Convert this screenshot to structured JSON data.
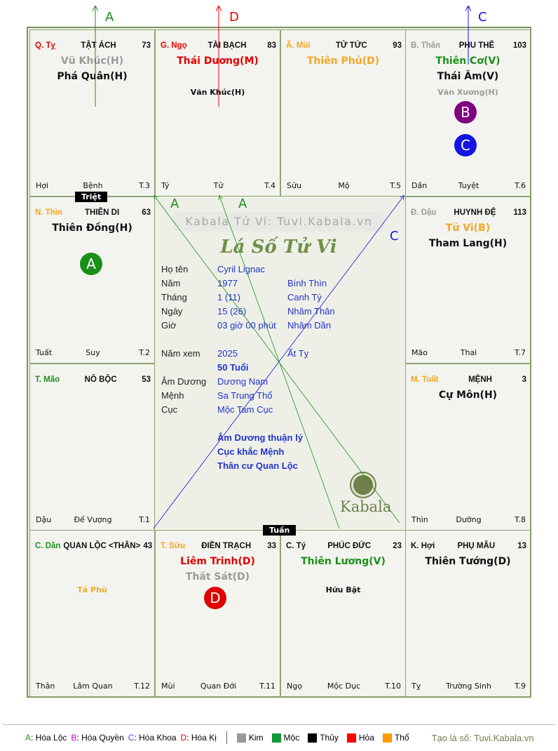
{
  "colors": {
    "red": "#e00000",
    "orange": "#f5a623",
    "green": "#1a8f1a",
    "gray": "#9a9a9a",
    "black": "#111111",
    "blue": "#1515e0",
    "purple": "#800080"
  },
  "cells": [
    {
      "branch": "Q. Tỵ",
      "branch_color": "red",
      "name": "TẬT ÁCH",
      "num": "73",
      "stars": [
        {
          "t": "Vũ Khúc(H)",
          "c": "gray"
        },
        {
          "t": "Phá Quân(H)",
          "c": "black"
        }
      ],
      "minor": [],
      "foot": [
        "Hợi",
        "Bệnh",
        "T.3"
      ]
    },
    {
      "branch": "G. Ngọ",
      "branch_color": "red",
      "name": "TÀI BẠCH",
      "num": "83",
      "stars": [
        {
          "t": "Thái Dương(M)",
          "c": "red"
        }
      ],
      "minor": [
        {
          "t": "Văn Khúc(H)",
          "c": "black"
        }
      ],
      "foot": [
        "Tý",
        "Tử",
        "T.4"
      ]
    },
    {
      "branch": "Ã. Mùi",
      "branch_color": "orange",
      "name": "TỬ TỨC",
      "num": "93",
      "stars": [
        {
          "t": "Thiên Phủ(D)",
          "c": "orange"
        }
      ],
      "minor": [],
      "foot": [
        "Sửu",
        "Mộ",
        "T.5"
      ]
    },
    {
      "branch": "B. Thân",
      "branch_color": "gray",
      "name": "PHU THÊ",
      "num": "103",
      "stars": [
        {
          "t": "Thiên Cơ(V)",
          "c": "green"
        },
        {
          "t": "Thái Âm(V)",
          "c": "black"
        }
      ],
      "minor": [
        {
          "t": "Văn Xương(H)",
          "c": "gray"
        }
      ],
      "foot": [
        "Dần",
        "Tuyệt",
        "T.6"
      ]
    },
    {
      "branch": "N. Thìn",
      "branch_color": "orange",
      "name": "THIÊN DI",
      "num": "63",
      "stars": [
        {
          "t": "Thiên Đồng(H)",
          "c": "black"
        }
      ],
      "minor": [],
      "foot": [
        "Tuất",
        "Suy",
        "T.2"
      ]
    },
    {
      "branch": "Đ. Dậu",
      "branch_color": "gray",
      "name": "HUYNH ĐỆ",
      "num": "113",
      "stars": [
        {
          "t": "Tử Vi(B)",
          "c": "orange"
        },
        {
          "t": "Tham Lang(H)",
          "c": "black"
        }
      ],
      "minor": [],
      "foot": [
        "Mão",
        "Thai",
        "T.7"
      ]
    },
    {
      "branch": "T. Mão",
      "branch_color": "green",
      "name": "NÔ BỘC",
      "num": "53",
      "stars": [],
      "minor": [],
      "foot": [
        "Dậu",
        "Đế Vượng",
        "T.1"
      ]
    },
    {
      "branch": "M. Tuất",
      "branch_color": "orange",
      "name": "MỆNH",
      "num": "3",
      "stars": [
        {
          "t": "Cự Môn(H)",
          "c": "black"
        }
      ],
      "minor": [],
      "foot": [
        "Thìn",
        "Dưỡng",
        "T.8"
      ]
    },
    {
      "branch": "C. Dần",
      "branch_color": "green",
      "name": "QUAN LỘC <THÂN>",
      "num": "43",
      "stars": [],
      "minor": [
        {
          "t": "Tả Phù",
          "c": "orange"
        }
      ],
      "foot": [
        "Thân",
        "Lâm Quan",
        "T.12"
      ]
    },
    {
      "branch": "T. Sửu",
      "branch_color": "orange",
      "name": "ĐIỀN TRẠCH",
      "num": "33",
      "stars": [
        {
          "t": "Liêm Trinh(D)",
          "c": "red"
        },
        {
          "t": "Thất Sát(D)",
          "c": "gray"
        }
      ],
      "minor": [],
      "foot": [
        "Mùi",
        "Quan Đới",
        "T.11"
      ]
    },
    {
      "branch": "C. Tý",
      "branch_color": "black",
      "name": "PHÚC ĐỨC",
      "num": "23",
      "stars": [
        {
          "t": "Thiên Lương(V)",
          "c": "green"
        }
      ],
      "minor": [
        {
          "t": "Hữu Bật",
          "c": "black"
        }
      ],
      "foot": [
        "Ngọ",
        "Mộc Dục",
        "T.10"
      ]
    },
    {
      "branch": "K. Hợi",
      "branch_color": "black",
      "name": "PHỤ MẪU",
      "num": "13",
      "stars": [
        {
          "t": "Thiên Tướng(D)",
          "c": "black"
        }
      ],
      "minor": [],
      "foot": [
        "Tỵ",
        "Trường Sinh",
        "T.9"
      ]
    }
  ],
  "markers": {
    "a": "A",
    "b": "B",
    "c": "C",
    "d": "D"
  },
  "tags": {
    "triet": "Triệt",
    "tuan": "Tuần"
  },
  "center": {
    "watermark": "Kabala Tử Vi: Tuvi.Kabala.vn",
    "title": "Lá Số Tử Vi",
    "logo": "Kabala",
    "rows": [
      {
        "label": "Họ tên",
        "v1": "Cyril Lignac",
        "v2": ""
      },
      {
        "label": "Năm",
        "v1": "1977",
        "v2": "Bính Thìn"
      },
      {
        "label": "Tháng",
        "v1": "1  (11)",
        "v2": "Canh Tý"
      },
      {
        "label": "Ngày",
        "v1": "15  (26)",
        "v2": "Nhâm Thân"
      },
      {
        "label": "Giờ",
        "v1": "03 giờ 00 phút",
        "v2": "Nhâm Dần"
      },
      {
        "label": "Năm xem",
        "v1": "2025",
        "v2": "Ất Tỵ"
      },
      {
        "label": "",
        "v1": "50 Tuổi",
        "v2": ""
      },
      {
        "label": "Âm Dương",
        "v1": "Dương Nam",
        "v2": ""
      },
      {
        "label": "Mệnh",
        "v1": "Sa Trung Thổ",
        "v2": ""
      },
      {
        "label": "Cục",
        "v1": "Mộc Tam Cục",
        "v2": ""
      }
    ],
    "notes": [
      "Âm Dương thuận lý",
      "Cục khắc Mệnh",
      "Thân cư Quan Lộc"
    ]
  },
  "legend": {
    "hoa": [
      {
        "k": "A",
        "t": ": Hóa Lộc",
        "c": "#1a8f1a"
      },
      {
        "k": "B",
        "t": ": Hóa Quyền",
        "c": "#cc00cc"
      },
      {
        "k": "C",
        "t": ": Hóa Khoa",
        "c": "#3355ee"
      },
      {
        "k": "D",
        "t": ": Hóa Kị",
        "c": "#e00000"
      }
    ],
    "elements": [
      {
        "t": "Kim",
        "c": "#999999"
      },
      {
        "t": "Mộc",
        "c": "#119933"
      },
      {
        "t": "Thủy",
        "c": "#000000"
      },
      {
        "t": "Hỏa",
        "c": "#ff0000"
      },
      {
        "t": "Thổ",
        "c": "#ff9900"
      }
    ],
    "credit": "Tạo lá số: Tuvi.Kabala.vn"
  }
}
